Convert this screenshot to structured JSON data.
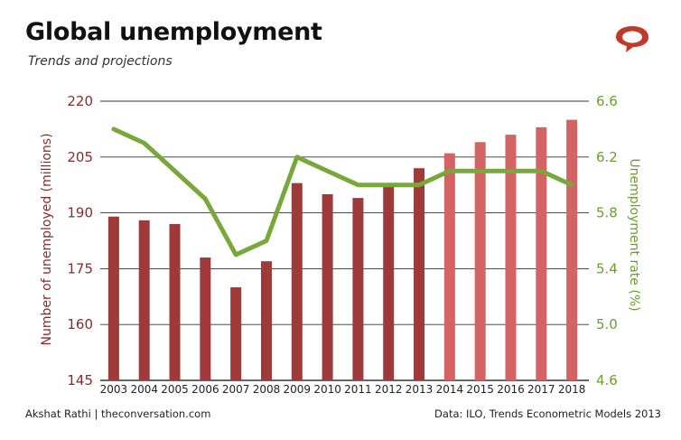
{
  "header": {
    "title": "Global unemployment",
    "subtitle": "Trends and projections"
  },
  "footer": {
    "credit": "Akshat Rathi | theconversation.com",
    "source": "Data: ILO, Trends Econometric Models 2013"
  },
  "logo": {
    "icon": "speech-bubble-icon",
    "color": "#c0392b"
  },
  "colors": {
    "bar_actual": "#9e3a3a",
    "bar_projected": "#d46363",
    "line": "#78a83a",
    "grid": "#333333",
    "left_axis": "#8a2a2a",
    "right_axis": "#6a9e2e"
  },
  "chart_data": {
    "type": "bar",
    "categories": [
      "2003",
      "2004",
      "2005",
      "2006",
      "2007",
      "2008",
      "2009",
      "2010",
      "2011",
      "2012",
      "2013",
      "2014",
      "2015",
      "2016",
      "2017",
      "2018"
    ],
    "series": [
      {
        "kind": "bar",
        "axis": "left",
        "values": [
          189,
          188,
          187,
          178,
          170,
          177,
          198,
          195,
          194,
          197,
          202,
          206,
          209,
          211,
          213,
          215
        ],
        "projected_from_index": 11
      },
      {
        "kind": "line",
        "axis": "right",
        "values": [
          6.4,
          6.3,
          6.1,
          5.9,
          5.5,
          5.6,
          6.2,
          6.1,
          6.0,
          6.0,
          6.0,
          6.1,
          6.1,
          6.1,
          6.1,
          6.0
        ]
      }
    ],
    "ylabel": "Number of unemployed (millions)",
    "ylim": [
      145,
      220
    ],
    "yticks": [
      145,
      160,
      175,
      190,
      205,
      220
    ],
    "y2label": "Unemployment rate (%)",
    "y2lim": [
      4.6,
      6.6
    ],
    "y2ticks": [
      "4.6",
      "5.0",
      "5.4",
      "5.8",
      "6.2",
      "6.6"
    ],
    "grid": true
  }
}
